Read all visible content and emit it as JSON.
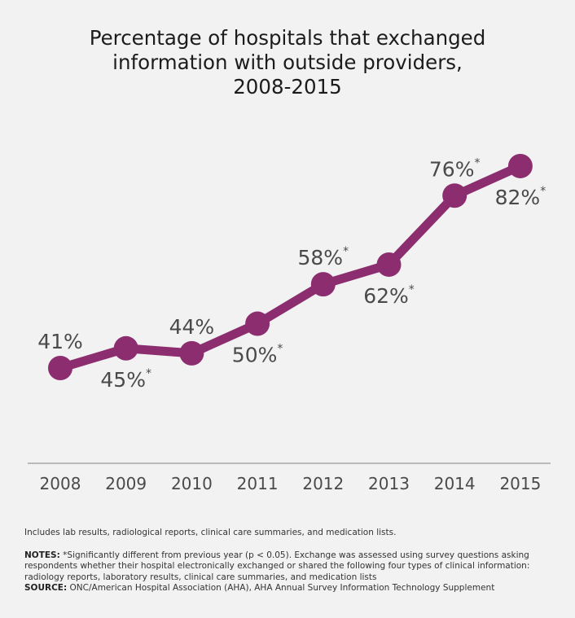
{
  "title_lines": [
    "Percentage of hospitals that exchanged",
    "information with outside providers,",
    "2008-2015"
  ],
  "colors": {
    "line": "#8b2d6e",
    "text": "#4a4a4a",
    "axis": "#a8a8a8",
    "background": "#f2f2f2"
  },
  "chart_data": {
    "type": "line",
    "title": "Percentage of hospitals that exchanged information with outside providers, 2008-2015",
    "xlabel": "",
    "ylabel": "",
    "categories": [
      "2008",
      "2009",
      "2010",
      "2011",
      "2012",
      "2013",
      "2014",
      "2015"
    ],
    "series": [
      {
        "values": [
          41,
          45,
          44,
          50,
          58,
          62,
          76,
          82
        ],
        "labels": [
          "41%",
          "45%",
          "44%",
          "50%",
          "58%",
          "62%",
          "76%",
          "82%"
        ],
        "significant": [
          false,
          true,
          false,
          true,
          true,
          true,
          true,
          true
        ],
        "label_position": [
          "above",
          "below",
          "above",
          "below",
          "above",
          "below",
          "above",
          "below"
        ]
      }
    ],
    "ylim": [
      0,
      100
    ],
    "grid": false,
    "legend": "none",
    "asterisk": "*"
  },
  "notes": {
    "includes": "Includes lab results, radiological reports, clinical care summaries, and medication lists.",
    "notes_label": "NOTES:",
    "notes_text": " *Significantly different from previous year (p < 0.05). Exchange was assessed using survey questions asking respondents whether their hospital electronically exchanged or shared the following four types of clinical information: radiology reports, laboratory results, clinical care summaries, and medication lists",
    "source_label": "SOURCE:",
    "source_text": " ONC/American Hospital Association (AHA), AHA Annual Survey Information Technology Supplement"
  }
}
